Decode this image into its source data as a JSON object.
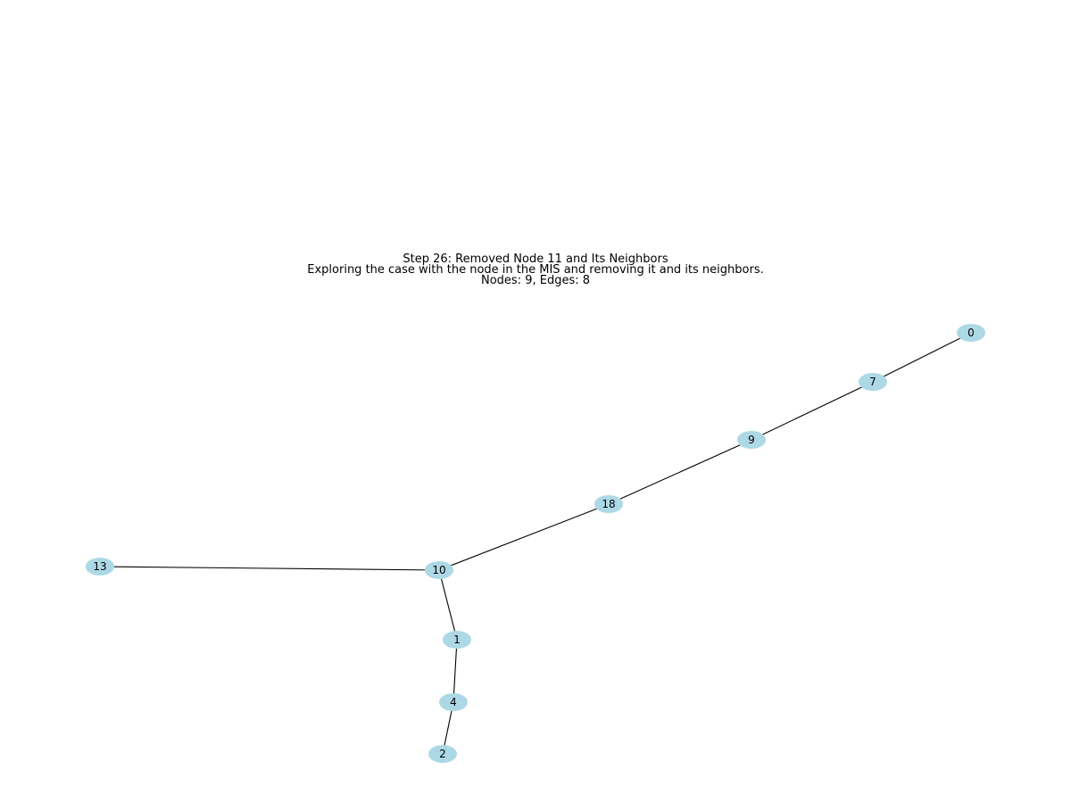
{
  "title": {
    "line1": "Step 26: Removed Node 11 and Its Neighbors",
    "line2": "Exploring the case with the node in the MIS and removing it and its neighbors.",
    "line3": "Nodes: 9, Edges: 8"
  },
  "graph": {
    "node_color": "#add8e6",
    "edge_color": "#000000",
    "nodes": [
      {
        "id": "0"
      },
      {
        "id": "7"
      },
      {
        "id": "9"
      },
      {
        "id": "18"
      },
      {
        "id": "10"
      },
      {
        "id": "13"
      },
      {
        "id": "1"
      },
      {
        "id": "4"
      },
      {
        "id": "2"
      }
    ],
    "edges": [
      [
        "0",
        "7"
      ],
      [
        "7",
        "9"
      ],
      [
        "9",
        "18"
      ],
      [
        "18",
        "10"
      ],
      [
        "10",
        "13"
      ],
      [
        "10",
        "1"
      ],
      [
        "1",
        "4"
      ],
      [
        "4",
        "2"
      ]
    ]
  }
}
